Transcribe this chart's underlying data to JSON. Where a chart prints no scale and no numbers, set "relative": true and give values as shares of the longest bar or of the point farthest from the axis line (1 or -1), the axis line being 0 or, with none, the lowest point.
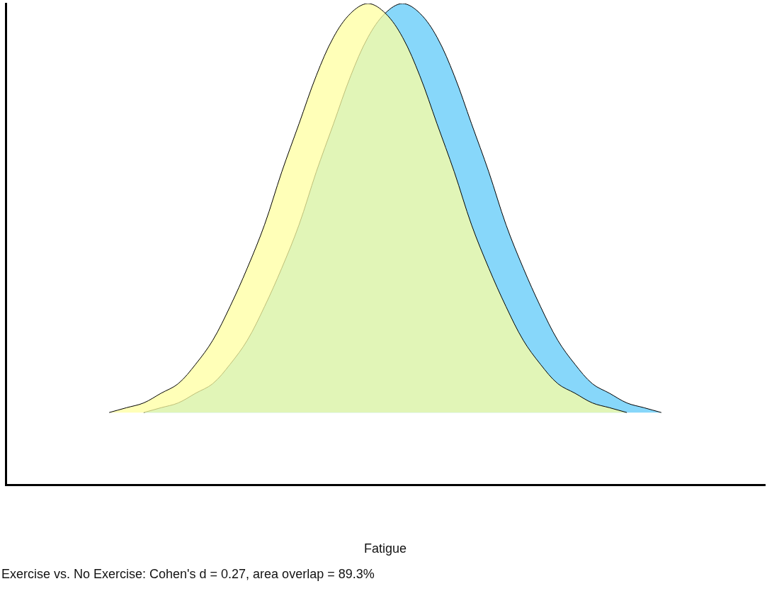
{
  "chart_data": {
    "type": "area",
    "relative": true,
    "xlabel": "Fatigue",
    "annotations": [
      "Exercise vs. No Exercise: Cohen's d = 0.27, area overlap = 89.3%"
    ],
    "grid": false,
    "legend": false,
    "categories": [
      null,
      null,
      null,
      null,
      null,
      null,
      null,
      null,
      null,
      null,
      null,
      null,
      null,
      null,
      null,
      null,
      null,
      null,
      null,
      null,
      null,
      null,
      null,
      null,
      null,
      null,
      null,
      null,
      null,
      null,
      null,
      null,
      null,
      null,
      null,
      null,
      null,
      null,
      null,
      null,
      null,
      null,
      null,
      null,
      null
    ],
    "series": [
      {
        "color": "#87d7fa",
        "values": [
          null,
          null,
          null,
          null,
          null,
          null,
          null,
          null,
          0.15,
          0.16,
          0.17,
          0.19,
          0.21,
          0.25,
          0.3,
          0.37,
          0.45,
          0.54,
          0.65,
          0.75,
          0.85,
          0.93,
          0.98,
          1.0,
          0.98,
          0.93,
          0.85,
          0.75,
          0.65,
          0.54,
          0.45,
          0.37,
          0.3,
          0.25,
          0.21,
          0.19,
          0.17,
          0.16,
          0.15,
          null,
          null,
          null,
          null,
          null,
          null
        ]
      },
      {
        "color": "#ffffa0",
        "values": [
          null,
          null,
          null,
          null,
          null,
          null,
          0.15,
          0.16,
          0.17,
          0.19,
          0.21,
          0.25,
          0.3,
          0.37,
          0.45,
          0.54,
          0.65,
          0.75,
          0.85,
          0.93,
          0.98,
          1.0,
          0.98,
          0.93,
          0.85,
          0.75,
          0.65,
          0.54,
          0.45,
          0.37,
          0.3,
          0.25,
          0.21,
          0.19,
          0.17,
          0.16,
          0.15,
          null,
          null,
          null,
          null,
          null,
          null,
          null,
          null
        ]
      }
    ]
  }
}
